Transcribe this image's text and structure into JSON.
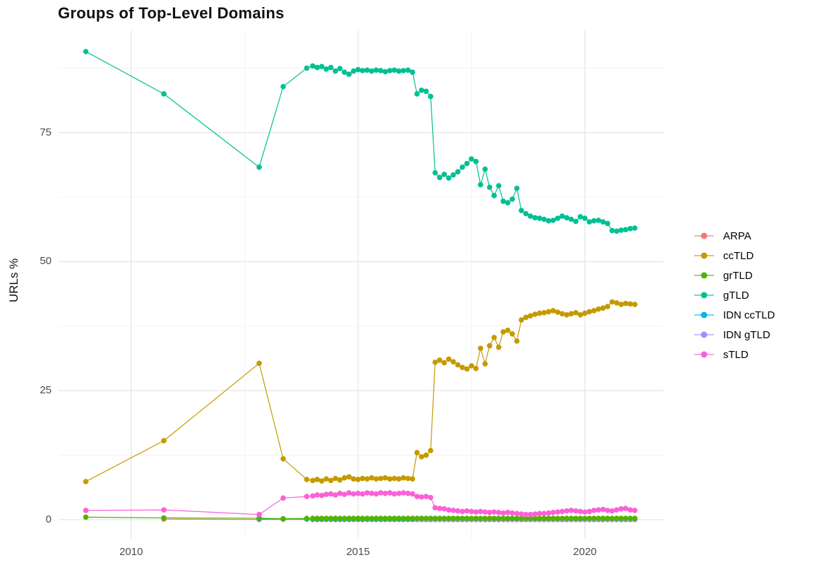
{
  "chart_data": {
    "type": "line",
    "title": "Groups of Top-Level Domains",
    "xlabel": "",
    "ylabel": "URLs %",
    "grid": true,
    "legend_position": "right",
    "xlim": [
      2008.4,
      2021.74
    ],
    "ylim": [
      -3.7,
      94.8
    ],
    "x_major_ticks": [
      {
        "value": 2010,
        "label": "2010"
      },
      {
        "value": 2015,
        "label": "2015"
      },
      {
        "value": 2020,
        "label": "2020"
      }
    ],
    "x_minor_ticks": [
      2012.5,
      2017.5
    ],
    "y_major_ticks": [
      {
        "value": 0,
        "label": "0"
      },
      {
        "value": 25,
        "label": "25"
      },
      {
        "value": 50,
        "label": "50"
      },
      {
        "value": 75,
        "label": "75"
      }
    ],
    "y_minor_ticks": [
      12.5,
      37.5,
      62.5,
      87.5
    ],
    "legend": [
      "ARPA",
      "ccTLD",
      "grTLD",
      "gTLD",
      "IDN ccTLD",
      "IDN gTLD",
      "sTLD"
    ],
    "colors": {
      "ARPA": "#F8766D",
      "ccTLD": "#C49A00",
      "grTLD": "#53B400",
      "gTLD": "#00C094",
      "IDN ccTLD": "#00B6EB",
      "IDN gTLD": "#A58AFF",
      "sTLD": "#FB61D7"
    },
    "grid_major_color": "#E4E4E4",
    "grid_minor_color": "#F0F0F0",
    "draw_order": [
      "ARPA",
      "IDN ccTLD",
      "IDN gTLD",
      "grTLD",
      "ccTLD",
      "gTLD",
      "sTLD"
    ],
    "series": {
      "ARPA": {
        "points": [
          [
            2010.72,
            0.1
          ],
          [
            2012.82,
            0.05
          ]
        ],
        "dense": {
          "start": 2014.0,
          "step": 0.1,
          "end": 2021.1,
          "value": 0.04
        }
      },
      "IDN ccTLD": {
        "points": [
          [
            2012.82,
            0.12
          ],
          [
            2013.35,
            0.1
          ],
          [
            2013.87,
            0.1
          ]
        ],
        "dense": {
          "start": 2014.0,
          "step": 0.1,
          "end": 2021.1,
          "value": 0.1
        }
      },
      "IDN gTLD": {
        "points": [],
        "dense": {
          "start": 2016.3,
          "step": 0.1,
          "end": 2021.1,
          "value": 0.02
        }
      },
      "grTLD": {
        "points": [
          [
            2009.0,
            0.5
          ],
          [
            2010.72,
            0.35
          ],
          [
            2012.82,
            0.3
          ],
          [
            2013.35,
            0.2
          ],
          [
            2013.87,
            0.25
          ]
        ],
        "dense": {
          "start": 2014.0,
          "step": 0.1,
          "end": 2021.1,
          "value": 0.25
        }
      },
      "ccTLD": {
        "points": [
          [
            2009.0,
            7.4
          ],
          [
            2010.72,
            15.3
          ],
          [
            2012.82,
            30.3
          ],
          [
            2013.35,
            11.8
          ],
          [
            2013.87,
            7.8
          ]
        ],
        "dense": {
          "start": 2014.0,
          "step": 0.1,
          "values": [
            7.6,
            7.8,
            7.5,
            7.9,
            7.6,
            8.0,
            7.7,
            8.1,
            8.3,
            7.9,
            7.8,
            8.0,
            7.9,
            8.1,
            7.9,
            8.0,
            8.1,
            7.9,
            8.0,
            7.9,
            8.1,
            8.0,
            7.9,
            13.0,
            12.2,
            12.5,
            13.4,
            30.5,
            30.9,
            30.4,
            31.1,
            30.6,
            30.0,
            29.5,
            29.2,
            29.8,
            29.3,
            33.2,
            30.2,
            33.7,
            35.3,
            33.4,
            36.4,
            36.7,
            36.0,
            34.6,
            38.7,
            39.2,
            39.5,
            39.8,
            40.0,
            40.1,
            40.3,
            40.5,
            40.2,
            39.9,
            39.7,
            39.9,
            40.1,
            39.7,
            40.0,
            40.3,
            40.5,
            40.8,
            41.0,
            41.3,
            42.2,
            42.0,
            41.7,
            41.9,
            41.8,
            41.7
          ]
        }
      },
      "gTLD": {
        "points": [
          [
            2009.0,
            90.7
          ],
          [
            2010.72,
            82.5
          ],
          [
            2012.82,
            68.3
          ],
          [
            2013.35,
            83.9
          ],
          [
            2013.87,
            87.5
          ]
        ],
        "dense": {
          "start": 2014.0,
          "step": 0.1,
          "values": [
            87.9,
            87.6,
            87.8,
            87.3,
            87.6,
            86.9,
            87.4,
            86.7,
            86.3,
            86.9,
            87.2,
            87.0,
            87.1,
            86.9,
            87.1,
            87.0,
            86.8,
            87.0,
            87.1,
            86.9,
            87.0,
            87.1,
            86.7,
            82.5,
            83.2,
            83.0,
            82.0,
            67.2,
            66.3,
            66.9,
            66.2,
            66.8,
            67.4,
            68.3,
            69.0,
            69.9,
            69.4,
            64.9,
            67.9,
            64.4,
            62.8,
            64.7,
            61.7,
            61.4,
            62.1,
            64.2,
            59.9,
            59.3,
            58.8,
            58.5,
            58.4,
            58.2,
            57.9,
            58.0,
            58.4,
            58.8,
            58.5,
            58.2,
            57.8,
            58.7,
            58.4,
            57.7,
            57.9,
            58.0,
            57.7,
            57.4,
            56.0,
            55.9,
            56.1,
            56.2,
            56.4,
            56.5
          ]
        }
      },
      "sTLD": {
        "points": [
          [
            2009.0,
            1.8
          ],
          [
            2010.72,
            1.9
          ],
          [
            2012.82,
            1.0
          ],
          [
            2013.35,
            4.2
          ],
          [
            2013.87,
            4.5
          ]
        ],
        "dense": {
          "start": 2014.0,
          "step": 0.1,
          "values": [
            4.6,
            4.8,
            4.7,
            4.9,
            5.0,
            4.8,
            5.1,
            4.9,
            5.2,
            5.0,
            5.1,
            5.0,
            5.2,
            5.1,
            5.0,
            5.2,
            5.1,
            5.2,
            5.0,
            5.1,
            5.2,
            5.1,
            5.0,
            4.5,
            4.4,
            4.5,
            4.3,
            2.3,
            2.2,
            2.1,
            1.9,
            1.8,
            1.7,
            1.6,
            1.7,
            1.6,
            1.5,
            1.6,
            1.5,
            1.4,
            1.5,
            1.4,
            1.3,
            1.4,
            1.3,
            1.2,
            1.1,
            1.0,
            1.0,
            1.1,
            1.2,
            1.2,
            1.3,
            1.4,
            1.5,
            1.6,
            1.7,
            1.8,
            1.7,
            1.6,
            1.5,
            1.6,
            1.8,
            1.9,
            2.0,
            1.8,
            1.7,
            1.9,
            2.1,
            2.2,
            1.9,
            1.8
          ]
        }
      }
    }
  }
}
